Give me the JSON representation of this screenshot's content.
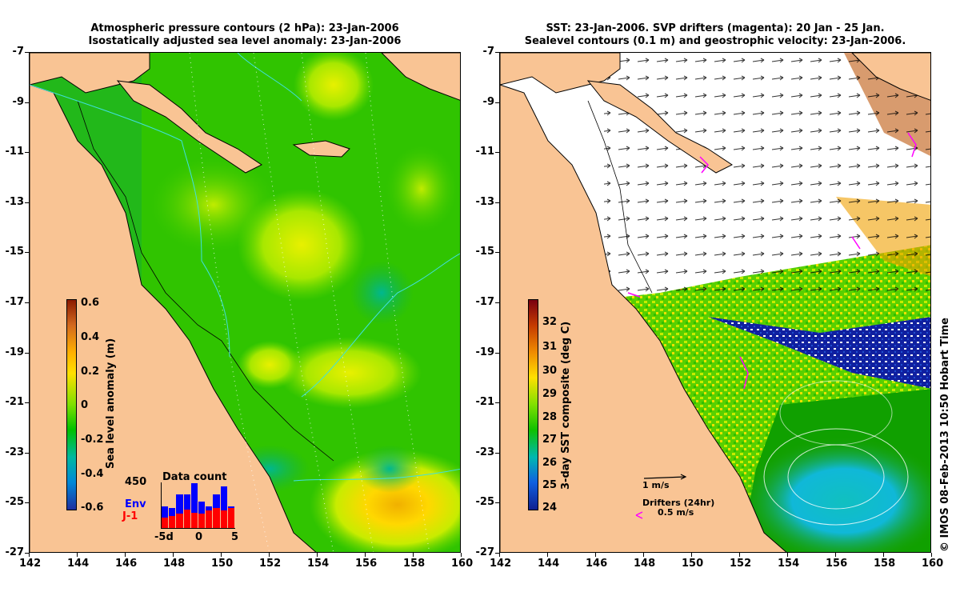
{
  "left_panel": {
    "title_line1": "Atmospheric pressure contours (2 hPa): 23-Jan-2006",
    "title_line2": "Isostatically adjusted sea level anomaly: 23-Jan-2006",
    "colorbar": {
      "label": "Sea level anomaly (m)",
      "ticks": [
        "0.6",
        "0.4",
        "0.2",
        "0",
        "-0.2",
        "-0.4",
        "-0.6"
      ],
      "colors": [
        "#8b1a00",
        "#d2691e",
        "#ffd000",
        "#7ee000",
        "#00c000",
        "#00b8a0",
        "#0088d8",
        "#2030a0"
      ]
    },
    "inset": {
      "title": "Data count",
      "max_label": "450",
      "series_env": "Env",
      "series_j1": "J-1",
      "x_ticks": [
        "-5d",
        "0",
        "5"
      ],
      "env_counts": [
        210,
        200,
        330,
        330,
        440,
        260,
        210,
        330,
        410,
        210
      ],
      "j1_counts": [
        100,
        120,
        140,
        180,
        150,
        140,
        170,
        200,
        170,
        200
      ],
      "env_color": "#0000ff",
      "j1_color": "#ff0000"
    }
  },
  "right_panel": {
    "title_line1": "SST: 23-Jan-2006. SVP drifters (magenta): 20 Jan - 25 Jan.",
    "title_line2": "Sealevel contours (0.1 m) and geostrophic velocity: 23-Jan-2006.",
    "colorbar": {
      "label": "3-day SST composite (deg C)",
      "ticks": [
        "32",
        "31",
        "30",
        "29",
        "28",
        "27",
        "26",
        "25",
        "24"
      ],
      "colors": [
        "#7a0010",
        "#c43a00",
        "#f08c00",
        "#ffe000",
        "#80e000",
        "#10c000",
        "#00b8b0",
        "#1060e0",
        "#102090"
      ]
    },
    "velocity_key": "1 m/s",
    "drifters_key_title": "Drifters (24hr)",
    "drifters_key_value": "0.5 m/s"
  },
  "axes": {
    "x_ticks": [
      "142",
      "144",
      "146",
      "148",
      "150",
      "152",
      "154",
      "156",
      "158",
      "160"
    ],
    "y_ticks": [
      "-7",
      "-9",
      "-11",
      "-13",
      "-15",
      "-17",
      "-19",
      "-21",
      "-23",
      "-25",
      "-27"
    ]
  },
  "credit": "© IMOS 08-Feb-2013 10:50 Hobart Time",
  "colors": {
    "land": "#f9c494",
    "cloud": "#ffffff",
    "sea_green": "#22c000",
    "contour_cyan": "#40e0e0"
  }
}
